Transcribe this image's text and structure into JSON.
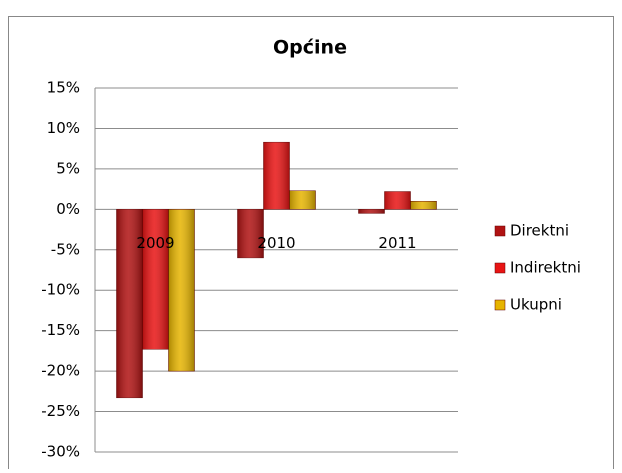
{
  "chart_data": {
    "type": "bar",
    "title": "Općine",
    "categories": [
      "2009",
      "2010",
      "2011"
    ],
    "series": [
      {
        "name": "Direktni",
        "color": "#b01212",
        "values": [
          -23.3,
          -6,
          -0.5
        ]
      },
      {
        "name": "Indirektni",
        "color": "#e81414",
        "values": [
          -17.3,
          8.3,
          2.2
        ]
      },
      {
        "name": "Ukupni",
        "color": "#e6b400",
        "values": [
          -20,
          2.3,
          1
        ]
      }
    ],
    "ylim": [
      -30,
      15
    ],
    "yticks": [
      {
        "value": 15,
        "label": "15%"
      },
      {
        "value": 10,
        "label": "10%"
      },
      {
        "value": 5,
        "label": "5%"
      },
      {
        "value": 0,
        "label": "0%"
      },
      {
        "value": -5,
        "label": "-5%"
      },
      {
        "value": -10,
        "label": "-10%"
      },
      {
        "value": -15,
        "label": "-15%"
      },
      {
        "value": -20,
        "label": "-20%"
      },
      {
        "value": -25,
        "label": "-25%"
      },
      {
        "value": -30,
        "label": "-30%"
      }
    ],
    "grid": true,
    "legend": "right"
  }
}
